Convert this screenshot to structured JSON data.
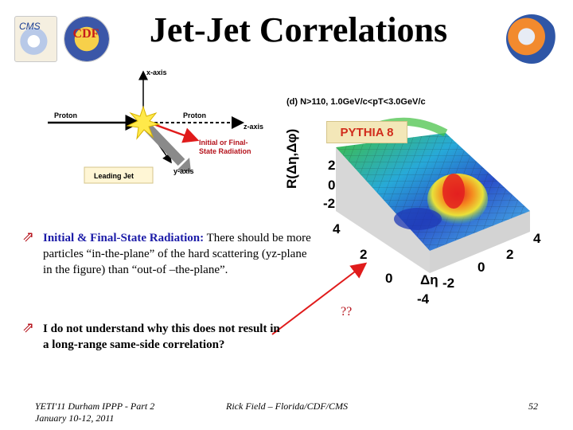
{
  "header": {
    "title": "Jet-Jet Correlations",
    "logos": {
      "cms": "CMS",
      "cdf": "CDF"
    }
  },
  "diagram": {
    "labels": {
      "x_axis": "x-axis",
      "y_axis": "y-axis",
      "z_axis": "z-axis",
      "proton_left": "Proton",
      "proton_right": "Proton",
      "radiation_line1": "Initial or Final-",
      "radiation_line2": "State Radiation",
      "leading_jet": "Leading Jet"
    }
  },
  "plot": {
    "title": "(d) N>110, 1.0GeV/c<pT<3.0GeV/c",
    "badge": "PYTHIA 8",
    "z_label": "R(Δη,Δφ)",
    "z_ticks": [
      "2",
      "0",
      "-2"
    ],
    "phi_ticks": [
      "4",
      "2",
      "0"
    ],
    "eta_ticks": [
      "4",
      "2",
      "0",
      "-2",
      "-4"
    ],
    "eta_label": "Δη"
  },
  "bullets": [
    {
      "lead": "Initial & Final-State Radiation:",
      "text": " There should be more particles “in-the-plane” of the hard scattering (yz-plane in the figure) than “out-of –the-plane”."
    },
    {
      "lead": "",
      "text": "I do not understand why this does not result in a long-range same-side correlation?"
    }
  ],
  "annotation": "??",
  "footer": {
    "left_line1": "YETI'11 Durham IPPP - Part 2",
    "left_line2": "January 10-12, 2011",
    "center": "Rick Field – Florida/CDF/CMS",
    "page": "52"
  },
  "colors": {
    "bullet_accent": "#b5121b",
    "lead_text": "#1c1ca8",
    "arrow": "#e01b1b"
  }
}
